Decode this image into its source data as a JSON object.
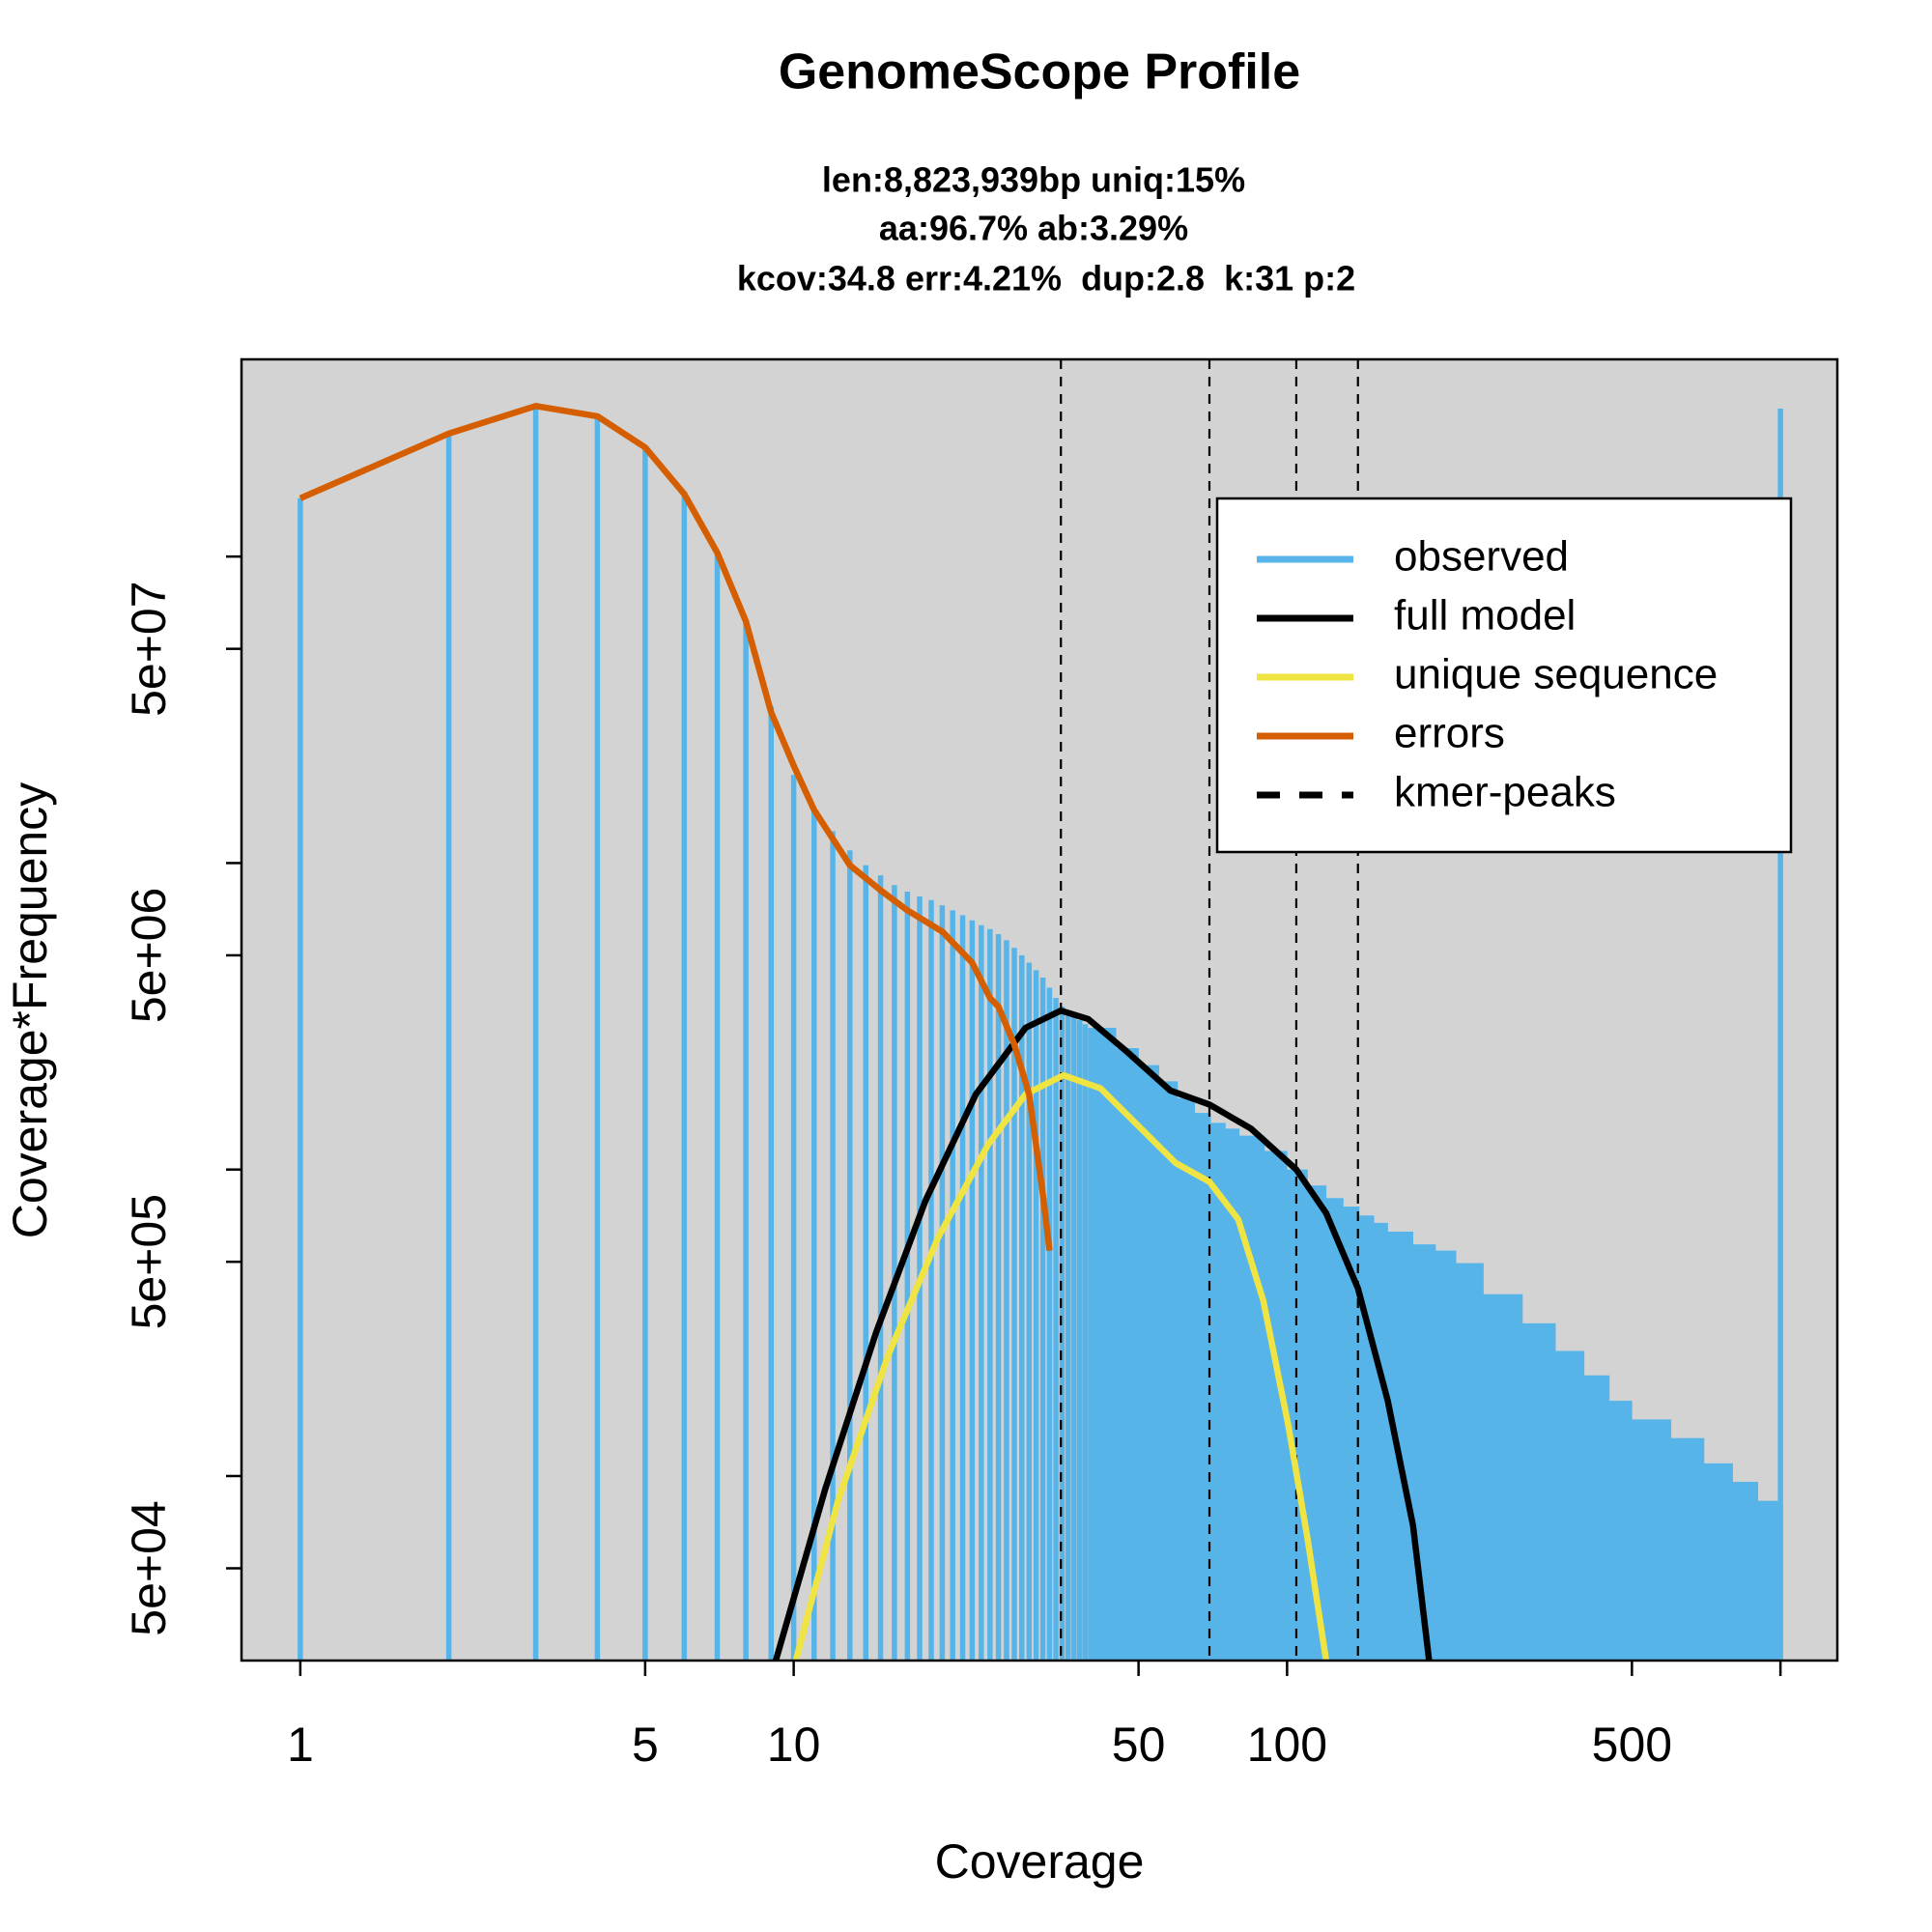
{
  "chart_data": {
    "type": "line",
    "title": "GenomeScope Profile",
    "subtitle": [
      "len:8,823,939bp uniq:15%",
      "aa:96.7% ab:3.29%",
      "kcov:34.8 err:4.21%  dup:2.8  k:31 p:2"
    ],
    "xlabel": "Coverage",
    "ylabel": "Coverage*Frequency",
    "xlog": true,
    "ylog": true,
    "xlim": [
      0.76,
      1304
    ],
    "ylim": [
      25000,
      440000000
    ],
    "xticks": [
      1,
      5,
      10,
      50,
      100,
      500
    ],
    "xticks_unlabeled": [
      1000
    ],
    "yticks": [
      {
        "value": 50000,
        "label": "5e+04"
      },
      {
        "value": 500000,
        "label": "5e+05"
      },
      {
        "value": 5000000,
        "label": "5e+06"
      },
      {
        "value": 50000000,
        "label": "5e+07"
      }
    ],
    "yticks_unlabeled": [
      100000,
      1000000,
      10000000,
      100000000
    ],
    "background": "#d3d3d3",
    "legend": "topright",
    "series": [
      {
        "name": "observed",
        "color": "#56B4E9",
        "type": "bar",
        "x": [
          1,
          2,
          3,
          4,
          5,
          6,
          7,
          8,
          9,
          10,
          11,
          12,
          13,
          14,
          15,
          16,
          17,
          18,
          19,
          20,
          21,
          22,
          23,
          24,
          25,
          26,
          27,
          28,
          29,
          30,
          31,
          32,
          33,
          34,
          35,
          36,
          37,
          38,
          39,
          40,
          45,
          50,
          55,
          60,
          65,
          70,
          75,
          80,
          90,
          100,
          110,
          120,
          130,
          140,
          150,
          160,
          180,
          200,
          220,
          250,
          300,
          350,
          400,
          450,
          500,
          600,
          700,
          800,
          900,
          990,
          1000
        ],
        "values": [
          155000000,
          252000000,
          310000000,
          287000000,
          229000000,
          163000000,
          102000000,
          61500000,
          32400000,
          19400000,
          14900000,
          12700000,
          11000000,
          9840000,
          9120000,
          8470000,
          8070000,
          7780000,
          7570000,
          7280000,
          7010000,
          6760000,
          6500000,
          6270000,
          6090000,
          5860000,
          5600000,
          5290000,
          5000000,
          4730000,
          4470000,
          4230000,
          3920000,
          3630000,
          3400000,
          3240000,
          3150000,
          3070000,
          2980000,
          2900000,
          2490000,
          2190000,
          1940000,
          1710000,
          1530000,
          1420000,
          1360000,
          1290000,
          1150000,
          1000000,
          887000,
          807000,
          757000,
          708000,
          670000,
          627000,
          570000,
          544000,
          495000,
          392000,
          315000,
          256000,
          213000,
          176000,
          153000,
          133000,
          110000,
          95700,
          83000,
          68800,
          304000000
        ]
      },
      {
        "name": "full model",
        "color": "#000000",
        "x": [
          9.2,
          11.6,
          14.7,
          18.5,
          23.4,
          29.5,
          34.8,
          39.5,
          47,
          58,
          69.6,
          84.5,
          104.4,
          120,
          139.2,
          160,
          180,
          194
        ],
        "values": [
          25000,
          91200,
          295000,
          792000,
          1760000,
          2900000,
          3300000,
          3100000,
          2450000,
          1810000,
          1630000,
          1360000,
          1000000,
          721000,
          410000,
          176000,
          68800,
          25000
        ]
      },
      {
        "name": "unique sequence",
        "color": "#F0E442",
        "x": [
          10.1,
          12.3,
          15.5,
          19.6,
          24.8,
          29.5,
          35.2,
          41.9,
          49.9,
          59.5,
          69.6,
          79.6,
          89.5,
          100.6,
          110,
          120
        ],
        "values": [
          25000,
          83000,
          245000,
          598000,
          1210000,
          1760000,
          2030000,
          1840000,
          1390000,
          1050000,
          912000,
          688000,
          373000,
          146000,
          62700,
          25000
        ]
      },
      {
        "name": "errors",
        "color": "#D55E00",
        "x": [
          1,
          2,
          3,
          4,
          5,
          6,
          7,
          8,
          9,
          10,
          11,
          13,
          15,
          17,
          20,
          23,
          25,
          26,
          28,
          30,
          32,
          33
        ],
        "values": [
          155000000,
          252000000,
          310000000,
          287000000,
          227000000,
          160000000,
          103000000,
          61500000,
          31000000,
          20800000,
          14900000,
          9840000,
          8150000,
          7010000,
          5980000,
          4730000,
          3630000,
          3400000,
          2560000,
          1760000,
          830000,
          544000
        ]
      }
    ],
    "peaks": {
      "name": "kmer-peaks",
      "color": "#000000",
      "dash": true,
      "x": [
        34.8,
        69.6,
        104.4,
        139.2
      ]
    }
  }
}
